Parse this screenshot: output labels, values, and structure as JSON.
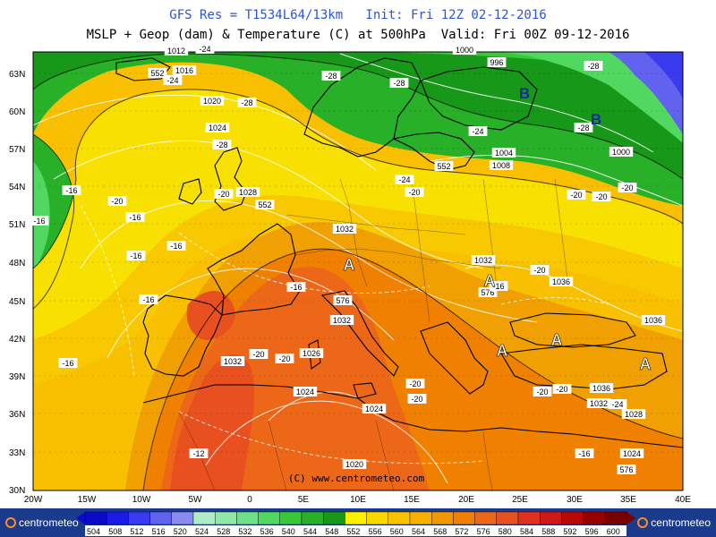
{
  "header": {
    "line1": "GFS Res = T1534L64/13km   Init: Fri 12Z 02-12-2016",
    "line2": "MSLP + Geop (dam) & Temperature (C) at 500hPa  Valid: Fri 00Z 09-12-2016"
  },
  "axes": {
    "lat_labels": [
      "63N",
      "60N",
      "57N",
      "54N",
      "51N",
      "48N",
      "45N",
      "42N",
      "39N",
      "36N",
      "33N",
      "30N"
    ],
    "lon_labels": [
      "20W",
      "15W",
      "10W",
      "5W",
      "0",
      "5E",
      "10E",
      "15E",
      "20E",
      "25E",
      "30E",
      "35E",
      "40E"
    ]
  },
  "copyright": "(C) www.centrometeo.com",
  "logo_text": "centrometeo",
  "legend": {
    "values": [
      "504",
      "508",
      "512",
      "516",
      "520",
      "524",
      "528",
      "532",
      "536",
      "540",
      "544",
      "548",
      "552",
      "556",
      "560",
      "564",
      "568",
      "572",
      "576",
      "580",
      "584",
      "588",
      "592",
      "596",
      "600"
    ],
    "colors": [
      "#0a0acb",
      "#1b1be8",
      "#3a3af0",
      "#6262f0",
      "#8a8af0",
      "#b0ecc8",
      "#90e8a8",
      "#70e088",
      "#50d860",
      "#38c838",
      "#28b028",
      "#189818",
      "#fcf000",
      "#f8d800",
      "#f8c400",
      "#f8b000",
      "#f09800",
      "#f08000",
      "#ec6818",
      "#e85020",
      "#e03020",
      "#d01818",
      "#b80808",
      "#980000",
      "#780000"
    ]
  },
  "map_labels": {
    "pressure": [
      "1012",
      "1016",
      "1020",
      "1024",
      "1028",
      "1032",
      "1032",
      "1036",
      "1032",
      "1036",
      "1032",
      "1026",
      "1024",
      "1024",
      "1020",
      "1036",
      "1032",
      "1028",
      "1024",
      "1000",
      "1004",
      "1008",
      "996",
      "1000"
    ],
    "geopotential": [
      "552",
      "552",
      "552",
      "576",
      "576",
      "576"
    ],
    "temperature": [
      "-24",
      "-24",
      "-28",
      "-28",
      "-28",
      "-28",
      "-28",
      "-28",
      "-24",
      "-24",
      "-20",
      "-20",
      "-20",
      "-16",
      "-16",
      "-16",
      "-16",
      "-16",
      "-16",
      "-16",
      "-16",
      "-16",
      "-20",
      "-20",
      "-20",
      "-20",
      "-20",
      "-20",
      "-20",
      "-20",
      "-20",
      "-20",
      "-24",
      "-16",
      "-12"
    ],
    "highs": [
      "A",
      "A",
      "A",
      "A",
      "A"
    ],
    "lows": [
      "B",
      "B"
    ]
  }
}
